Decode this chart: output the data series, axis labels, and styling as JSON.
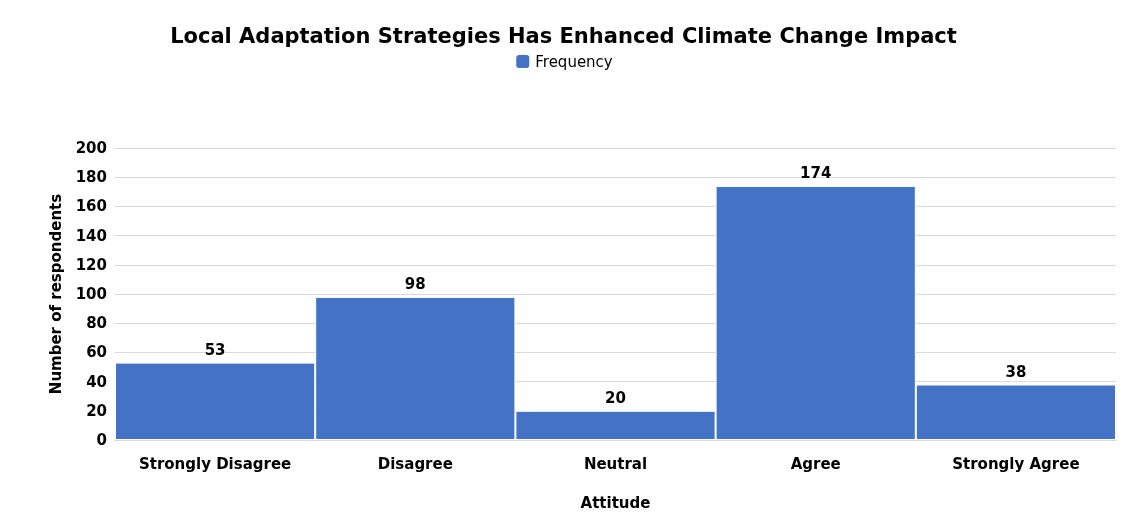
{
  "chart_data": {
    "type": "bar",
    "title": "Local Adaptation Strategies Has Enhanced Climate Change Impact",
    "xlabel": "Attitude",
    "ylabel": "Number of respondents",
    "categories": [
      "Strongly Disagree",
      "Disagree",
      "Neutral",
      "Agree",
      "Strongly Agree"
    ],
    "series": [
      {
        "name": "Frequency",
        "color": "#4472c4",
        "values": [
          53,
          98,
          20,
          174,
          38
        ]
      }
    ],
    "ylim": [
      0,
      200
    ],
    "yticks": [
      0,
      20,
      40,
      60,
      80,
      100,
      120,
      140,
      160,
      180,
      200
    ],
    "grid": "y",
    "legend": "top",
    "data_labels": true
  }
}
